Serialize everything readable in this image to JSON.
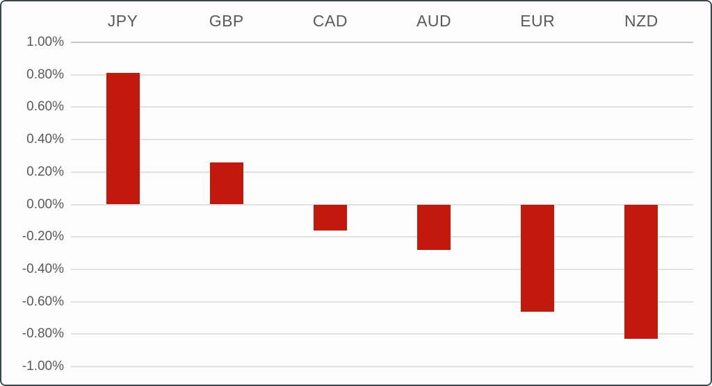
{
  "chart_data": {
    "type": "bar",
    "title": "",
    "xlabel": "",
    "ylabel": "",
    "categories": [
      "JPY",
      "GBP",
      "CAD",
      "AUD",
      "EUR",
      "NZD"
    ],
    "values": [
      0.81,
      0.26,
      -0.16,
      -0.28,
      -0.66,
      -0.83
    ],
    "ylim": [
      -1.0,
      1.0
    ],
    "ytick_step": 0.2,
    "ytick_labels": [
      "1.00%",
      "0.80%",
      "0.60%",
      "0.40%",
      "0.20%",
      "0.00%",
      "-0.20%",
      "-0.40%",
      "-0.60%",
      "-0.80%",
      "-1.00%"
    ],
    "grid": true,
    "legend_position": "none",
    "category_axis_position": "top",
    "colors": {
      "bar": "#c2190c",
      "text": "#595959",
      "gridline": "#e1e1e1",
      "gridline_top": "#c9c9c9",
      "frame_border": "#3a464e",
      "background": "#fdfdfd"
    }
  }
}
